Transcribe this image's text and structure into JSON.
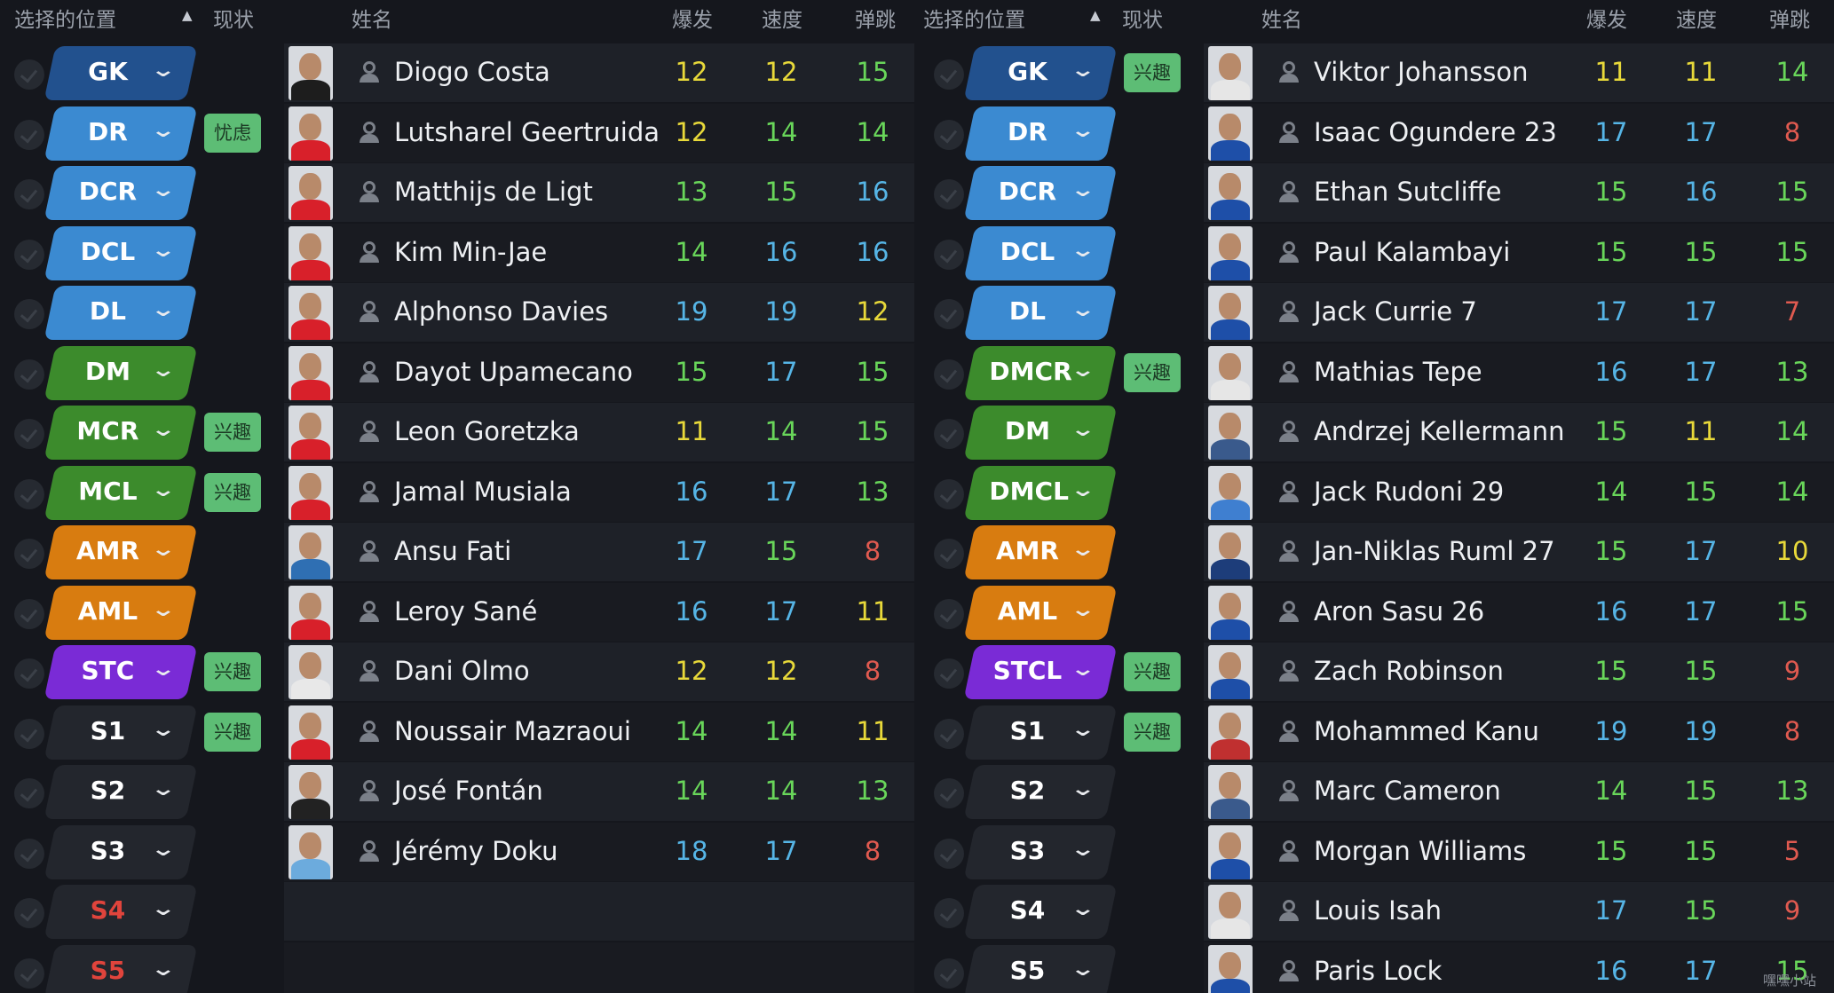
{
  "headers": {
    "position": "选择的位置",
    "status": "现状",
    "name": "姓名",
    "acc": "爆发",
    "pac": "速度",
    "jum": "弹跳"
  },
  "colors": {
    "gk": "#22518e",
    "def": "#3b8ad1",
    "mid": "#3c8b2c",
    "att": "#d87c10",
    "st": "#7a2bd6",
    "sub": "#23262d",
    "stat_yellow": "#e8d93a",
    "stat_green": "#69d65a",
    "stat_blue": "#56b5e6",
    "stat_red": "#e05a50",
    "status_bg": "#5dbd75"
  },
  "left": {
    "rows": [
      {
        "pos": "GK",
        "group": "gk",
        "status": "",
        "name": "Diogo Costa",
        "kit": "#1d1d1d",
        "acc": "12",
        "pac": "12",
        "jum": "15",
        "acc_c": "stat_yellow",
        "pac_c": "stat_yellow",
        "jum_c": "stat_green"
      },
      {
        "pos": "DR",
        "group": "def",
        "status": "忧虑",
        "name": "Lutsharel Geertruida",
        "kit": "#d8202a",
        "acc": "12",
        "pac": "14",
        "jum": "14",
        "acc_c": "stat_yellow",
        "pac_c": "stat_green",
        "jum_c": "stat_green"
      },
      {
        "pos": "DCR",
        "group": "def",
        "status": "",
        "name": "Matthijs de Ligt",
        "kit": "#d8202a",
        "acc": "13",
        "pac": "15",
        "jum": "16",
        "acc_c": "stat_green",
        "pac_c": "stat_green",
        "jum_c": "stat_blue"
      },
      {
        "pos": "DCL",
        "group": "def",
        "status": "",
        "name": "Kim Min-Jae",
        "kit": "#d8202a",
        "acc": "14",
        "pac": "16",
        "jum": "16",
        "acc_c": "stat_green",
        "pac_c": "stat_blue",
        "jum_c": "stat_blue"
      },
      {
        "pos": "DL",
        "group": "def",
        "status": "",
        "name": "Alphonso Davies",
        "kit": "#d8202a",
        "acc": "19",
        "pac": "19",
        "jum": "12",
        "acc_c": "stat_blue",
        "pac_c": "stat_blue",
        "jum_c": "stat_yellow"
      },
      {
        "pos": "DM",
        "group": "mid",
        "status": "",
        "name": "Dayot Upamecano",
        "kit": "#d8202a",
        "acc": "15",
        "pac": "17",
        "jum": "15",
        "acc_c": "stat_green",
        "pac_c": "stat_blue",
        "jum_c": "stat_green"
      },
      {
        "pos": "MCR",
        "group": "mid",
        "status": "兴趣",
        "name": "Leon Goretzka",
        "kit": "#d8202a",
        "acc": "11",
        "pac": "14",
        "jum": "15",
        "acc_c": "stat_yellow",
        "pac_c": "stat_green",
        "jum_c": "stat_green"
      },
      {
        "pos": "MCL",
        "group": "mid",
        "status": "兴趣",
        "name": "Jamal Musiala",
        "kit": "#d8202a",
        "acc": "16",
        "pac": "17",
        "jum": "13",
        "acc_c": "stat_blue",
        "pac_c": "stat_blue",
        "jum_c": "stat_green"
      },
      {
        "pos": "AMR",
        "group": "att",
        "status": "",
        "name": "Ansu Fati",
        "kit": "#2f6fb3",
        "acc": "17",
        "pac": "15",
        "jum": "8",
        "acc_c": "stat_blue",
        "pac_c": "stat_green",
        "jum_c": "stat_red"
      },
      {
        "pos": "AML",
        "group": "att",
        "status": "",
        "name": "Leroy Sané",
        "kit": "#d8202a",
        "acc": "16",
        "pac": "17",
        "jum": "11",
        "acc_c": "stat_blue",
        "pac_c": "stat_blue",
        "jum_c": "stat_yellow"
      },
      {
        "pos": "STC",
        "group": "st",
        "status": "兴趣",
        "name": "Dani Olmo",
        "kit": "#e8e8e8",
        "acc": "12",
        "pac": "12",
        "jum": "8",
        "acc_c": "stat_yellow",
        "pac_c": "stat_yellow",
        "jum_c": "stat_red"
      },
      {
        "pos": "S1",
        "group": "sub",
        "status": "兴趣",
        "name": "Noussair Mazraoui",
        "kit": "#d8202a",
        "acc": "14",
        "pac": "14",
        "jum": "11",
        "acc_c": "stat_green",
        "pac_c": "stat_green",
        "jum_c": "stat_yellow"
      },
      {
        "pos": "S2",
        "group": "sub",
        "status": "",
        "name": "José Fontán",
        "kit": "#222222",
        "acc": "14",
        "pac": "14",
        "jum": "13",
        "acc_c": "stat_green",
        "pac_c": "stat_green",
        "jum_c": "stat_green"
      },
      {
        "pos": "S3",
        "group": "sub",
        "status": "",
        "name": "Jérémy Doku",
        "kit": "#6cabdd",
        "acc": "18",
        "pac": "17",
        "jum": "8",
        "acc_c": "stat_blue",
        "pac_c": "stat_blue",
        "jum_c": "stat_red"
      },
      {
        "pos": "S4",
        "group": "sub",
        "red": true,
        "status": "",
        "name": "",
        "kit": "",
        "acc": "",
        "pac": "",
        "jum": "",
        "acc_c": "",
        "pac_c": "",
        "jum_c": ""
      },
      {
        "pos": "S5",
        "group": "sub",
        "red": true,
        "status": "",
        "name": "",
        "kit": "",
        "acc": "",
        "pac": "",
        "jum": "",
        "acc_c": "",
        "pac_c": "",
        "jum_c": ""
      }
    ]
  },
  "right": {
    "rows": [
      {
        "pos": "GK",
        "group": "gk",
        "status": "兴趣",
        "name": "Viktor Johansson",
        "kit": "#e6e6e6",
        "acc": "11",
        "pac": "11",
        "jum": "14",
        "acc_c": "stat_yellow",
        "pac_c": "stat_yellow",
        "jum_c": "stat_green"
      },
      {
        "pos": "DR",
        "group": "def",
        "status": "",
        "name": "Isaac Ogundere 23",
        "kit": "#1e4fa8",
        "acc": "17",
        "pac": "17",
        "jum": "8",
        "acc_c": "stat_blue",
        "pac_c": "stat_blue",
        "jum_c": "stat_red"
      },
      {
        "pos": "DCR",
        "group": "def",
        "status": "",
        "name": "Ethan Sutcliffe",
        "kit": "#1e4fa8",
        "acc": "15",
        "pac": "16",
        "jum": "15",
        "acc_c": "stat_green",
        "pac_c": "stat_blue",
        "jum_c": "stat_green"
      },
      {
        "pos": "DCL",
        "group": "def",
        "status": "",
        "name": "Paul Kalambayi",
        "kit": "#1e4fa8",
        "acc": "15",
        "pac": "15",
        "jum": "15",
        "acc_c": "stat_green",
        "pac_c": "stat_green",
        "jum_c": "stat_green"
      },
      {
        "pos": "DL",
        "group": "def",
        "status": "",
        "name": "Jack Currie 7",
        "kit": "#1e4fa8",
        "acc": "17",
        "pac": "17",
        "jum": "7",
        "acc_c": "stat_blue",
        "pac_c": "stat_blue",
        "jum_c": "stat_red"
      },
      {
        "pos": "DMCR",
        "group": "mid",
        "status": "兴趣",
        "name": "Mathias Tepe",
        "kit": "#e6e6e6",
        "acc": "16",
        "pac": "17",
        "jum": "13",
        "acc_c": "stat_blue",
        "pac_c": "stat_blue",
        "jum_c": "stat_green"
      },
      {
        "pos": "DM",
        "group": "mid",
        "status": "",
        "name": "Andrzej Kellermann",
        "kit": "#3a5a8c",
        "acc": "15",
        "pac": "11",
        "jum": "14",
        "acc_c": "stat_green",
        "pac_c": "stat_yellow",
        "jum_c": "stat_green"
      },
      {
        "pos": "DMCL",
        "group": "mid",
        "status": "",
        "name": "Jack Rudoni 29",
        "kit": "#3f7fd0",
        "acc": "14",
        "pac": "15",
        "jum": "14",
        "acc_c": "stat_green",
        "pac_c": "stat_green",
        "jum_c": "stat_green"
      },
      {
        "pos": "AMR",
        "group": "att",
        "status": "",
        "name": "Jan-Niklas Ruml 27",
        "kit": "#1d3d7a",
        "acc": "15",
        "pac": "17",
        "jum": "10",
        "acc_c": "stat_green",
        "pac_c": "stat_blue",
        "jum_c": "stat_yellow"
      },
      {
        "pos": "AML",
        "group": "att",
        "status": "",
        "name": "Aron Sasu 26",
        "kit": "#1e4fa8",
        "acc": "16",
        "pac": "17",
        "jum": "15",
        "acc_c": "stat_blue",
        "pac_c": "stat_blue",
        "jum_c": "stat_green"
      },
      {
        "pos": "STCL",
        "group": "st",
        "status": "兴趣",
        "name": "Zach Robinson",
        "kit": "#1e4fa8",
        "acc": "15",
        "pac": "15",
        "jum": "9",
        "acc_c": "stat_green",
        "pac_c": "stat_green",
        "jum_c": "stat_red"
      },
      {
        "pos": "S1",
        "group": "sub",
        "status": "兴趣",
        "name": "Mohammed Kanu",
        "kit": "#c03030",
        "acc": "19",
        "pac": "19",
        "jum": "8",
        "acc_c": "stat_blue",
        "pac_c": "stat_blue",
        "jum_c": "stat_red"
      },
      {
        "pos": "S2",
        "group": "sub",
        "status": "",
        "name": "Marc Cameron",
        "kit": "#3a5a8c",
        "acc": "14",
        "pac": "15",
        "jum": "13",
        "acc_c": "stat_green",
        "pac_c": "stat_green",
        "jum_c": "stat_green"
      },
      {
        "pos": "S3",
        "group": "sub",
        "status": "",
        "name": "Morgan Williams",
        "kit": "#1e4fa8",
        "acc": "15",
        "pac": "15",
        "jum": "5",
        "acc_c": "stat_green",
        "pac_c": "stat_green",
        "jum_c": "stat_red"
      },
      {
        "pos": "S4",
        "group": "sub",
        "status": "",
        "name": "Louis Isah",
        "kit": "#e6e6e6",
        "acc": "17",
        "pac": "15",
        "jum": "9",
        "acc_c": "stat_blue",
        "pac_c": "stat_green",
        "jum_c": "stat_red"
      },
      {
        "pos": "S5",
        "group": "sub",
        "status": "",
        "name": "Paris Lock",
        "kit": "#1e4fa8",
        "acc": "16",
        "pac": "17",
        "jum": "15",
        "acc_c": "stat_blue",
        "pac_c": "stat_blue",
        "jum_c": "stat_green"
      }
    ]
  },
  "watermark": "嘿嘿小站"
}
